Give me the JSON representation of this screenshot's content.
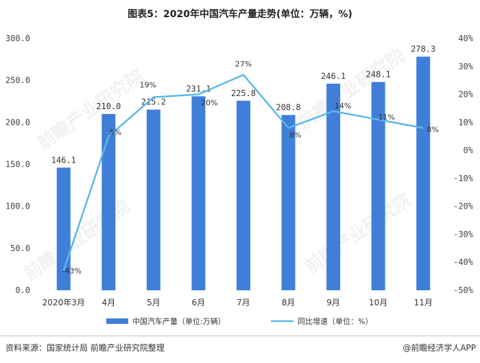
{
  "title": "图表5：2020年中国汽车产量走势(单位：万辆，%)",
  "source": "资料来源：国家统计局 前瞻产业研究院整理",
  "brand": "@前瞻经济学人APP",
  "watermark": "前瞻产业研究院",
  "colors": {
    "bar": "#3f7fd9",
    "line": "#5ab9e6"
  },
  "chart_data": {
    "type": "bar",
    "title": "图表5：2020年中国汽车产量走势(单位：万辆，%)",
    "categories": [
      "2020年3月",
      "4月",
      "5月",
      "6月",
      "7月",
      "8月",
      "9月",
      "10月",
      "11月"
    ],
    "series": [
      {
        "name": "中国汽车产量（单位:万辆）",
        "type": "bar",
        "axis": "left",
        "values": [
          146.1,
          210.0,
          215.2,
          231.1,
          225.8,
          208.8,
          246.1,
          248.1,
          278.3
        ],
        "labels": [
          "146.1",
          "210.0",
          "215.2",
          "231.1",
          "225.8",
          "208.8",
          "246.1",
          "248.1",
          "278.3"
        ]
      },
      {
        "name": "同比增速（单位：%）",
        "type": "line",
        "axis": "right",
        "values": [
          -43,
          5,
          19,
          20,
          27,
          8,
          14,
          11,
          8
        ],
        "labels": [
          "-43%",
          "5%",
          "19%",
          "20%",
          "27%",
          "8%",
          "14%",
          "11%",
          "8%"
        ]
      }
    ],
    "left_axis": {
      "ylim": [
        0,
        300
      ],
      "ticks": [
        "0.0",
        "50.0",
        "100.0",
        "150.0",
        "200.0",
        "250.0",
        "300.0"
      ]
    },
    "right_axis": {
      "ylim": [
        -50,
        40
      ],
      "ticks": [
        "-50%",
        "-40%",
        "-30%",
        "-20%",
        "-10%",
        "0%",
        "10%",
        "20%",
        "30%",
        "40%"
      ]
    },
    "grid": false,
    "legend": "bottom"
  }
}
